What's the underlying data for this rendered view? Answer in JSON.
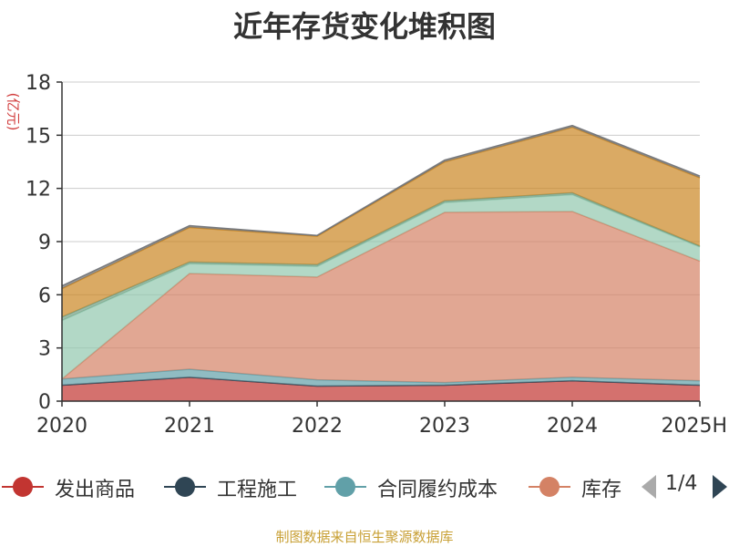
{
  "chart_data": {
    "type": "area",
    "stacked": true,
    "title": "近年存货变化堆积图",
    "ylabel": "(亿元)",
    "categories": [
      "2020",
      "2021",
      "2022",
      "2023",
      "2024",
      "2025H"
    ],
    "ylim": [
      0,
      18
    ],
    "yticks": [
      0,
      3,
      6,
      9,
      12,
      15,
      18
    ],
    "grid": true,
    "legend_position": "bottom",
    "series": [
      {
        "name": "发出商品",
        "color": "#c23531",
        "values": [
          0.9,
          1.35,
          0.85,
          0.9,
          1.15,
          0.9
        ]
      },
      {
        "name": "工程施工",
        "color": "#2f4554",
        "values": [
          0.0,
          0.0,
          0.0,
          0.0,
          0.0,
          0.0
        ]
      },
      {
        "name": "合同履约成本",
        "color": "#61a0a8",
        "values": [
          0.35,
          0.45,
          0.35,
          0.15,
          0.2,
          0.25
        ]
      },
      {
        "name": "库存",
        "color": "#d48265",
        "values": [
          0.0,
          5.4,
          5.8,
          9.6,
          9.35,
          6.75
        ]
      },
      {
        "name": "",
        "color": "#91c7ae",
        "values": [
          3.3,
          0.55,
          0.6,
          0.55,
          0.95,
          0.8
        ]
      },
      {
        "name": "",
        "color": "#749f83",
        "values": [
          0.2,
          0.1,
          0.1,
          0.1,
          0.1,
          0.05
        ]
      },
      {
        "name": "",
        "color": "#ca8622",
        "values": [
          1.6,
          1.95,
          1.6,
          2.2,
          3.7,
          3.85
        ]
      },
      {
        "name": "",
        "color": "#6e7074",
        "values": [
          0.15,
          0.1,
          0.05,
          0.1,
          0.1,
          0.1
        ]
      }
    ]
  },
  "legend": {
    "page": "1/4",
    "items": [
      {
        "label": "发出商品",
        "color": "#c23531"
      },
      {
        "label": "工程施工",
        "color": "#2f4554"
      },
      {
        "label": "合同履约成本",
        "color": "#61a0a8"
      },
      {
        "label": "库存",
        "color": "#d48265"
      }
    ]
  },
  "footer": "制图数据来自恒生聚源数据库"
}
